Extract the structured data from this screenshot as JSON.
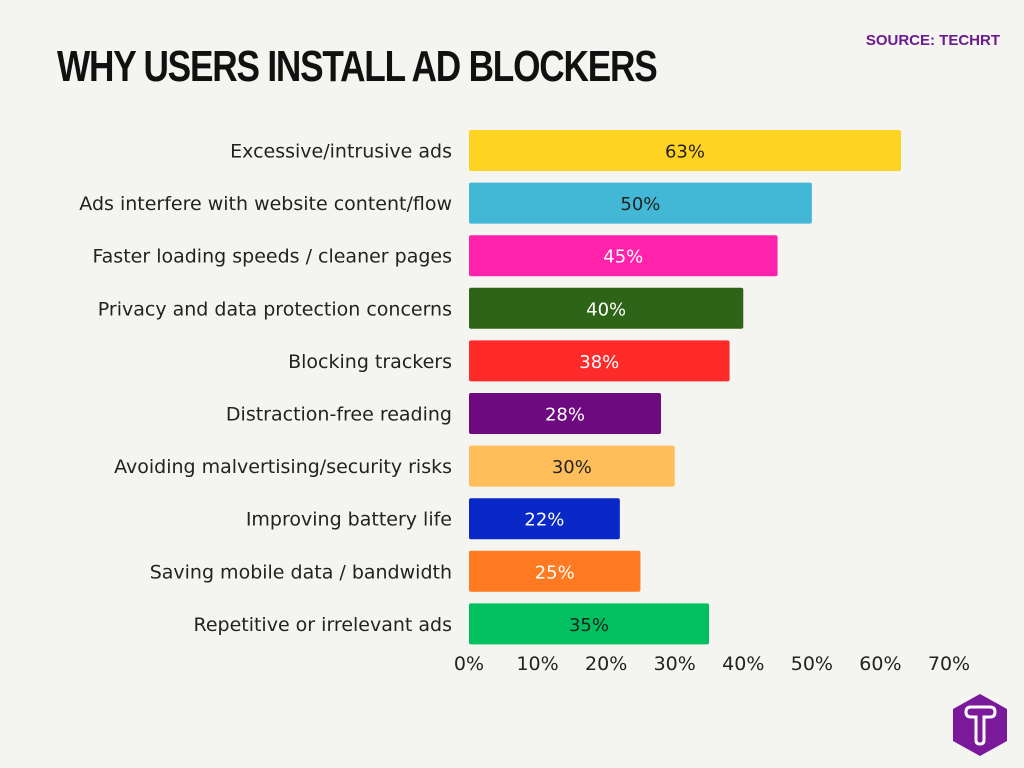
{
  "source": "SOURCE: TECHRT",
  "chart_data": {
    "type": "bar",
    "orientation": "horizontal",
    "title": "WHY USERS INSTALL AD BLOCKERS",
    "categories": [
      "Excessive/intrusive ads",
      "Ads interfere with website content/flow",
      "Faster loading speeds / cleaner pages",
      "Privacy and data protection concerns",
      "Blocking trackers",
      "Distraction-free reading",
      "Avoiding malvertising/security risks",
      "Improving battery life",
      "Saving mobile data / bandwidth",
      "Repetitive or irrelevant ads"
    ],
    "values": [
      63,
      50,
      45,
      40,
      38,
      28,
      30,
      22,
      25,
      35
    ],
    "value_labels": [
      "63%",
      "50%",
      "45%",
      "40%",
      "38%",
      "28%",
      "30%",
      "22%",
      "25%",
      "35%"
    ],
    "colors": [
      "#ffd322",
      "#42b8d6",
      "#ff22aa",
      "#2e6417",
      "#ff2a2a",
      "#6e0a80",
      "#ffbe5a",
      "#0a28c8",
      "#ff7a20",
      "#00c060"
    ],
    "label_colors": [
      "#222222",
      "#222222",
      "#ffffff",
      "#ffffff",
      "#ffffff",
      "#ffffff",
      "#222222",
      "#ffffff",
      "#ffffff",
      "#222222"
    ],
    "xlim": [
      0,
      70
    ],
    "xticks": [
      "0%",
      "10%",
      "20%",
      "30%",
      "40%",
      "50%",
      "60%",
      "70%"
    ],
    "grid": false,
    "legend": "none"
  },
  "logo": {
    "letter": "T",
    "color": "#7a1a9a"
  }
}
